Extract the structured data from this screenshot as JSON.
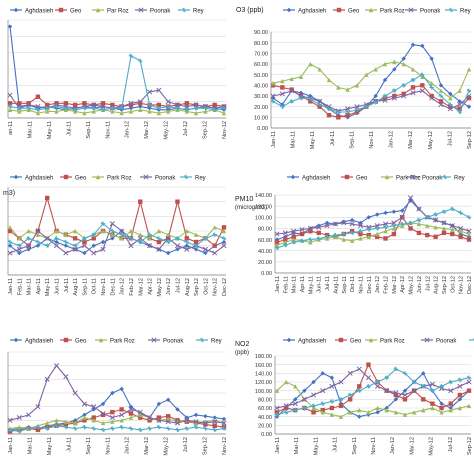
{
  "colors": {
    "s1": "#4472C4",
    "s2": "#C0504D",
    "s3": "#9BBB59",
    "s4": "#8064A2",
    "s5": "#4BACC6",
    "grid": "#d9d9d9",
    "axis": "#808080"
  },
  "chart_data": [
    {
      "type": "line",
      "title": "",
      "ylabel": "",
      "ylim": [
        0,
        6
      ],
      "grid": true,
      "legend": "top",
      "y_ticks": [],
      "x_ticks": [
        "an-11",
        "Mar-11",
        "May-11",
        "Jul-11",
        "Sep-11",
        "Nov-11",
        "Jan-12",
        "Mar-12",
        "May-12",
        "Jul-12",
        "Sep-12",
        "Nov-12"
      ],
      "series": [
        {
          "name": "Aghdasieh",
          "values": [
            5.6,
            0.7,
            0.8,
            0.6,
            0.7,
            0.6,
            0.5,
            0.6,
            0.7,
            0.6,
            0.7,
            0.6,
            0.5,
            0.6,
            0.7,
            0.6,
            0.5,
            0.5,
            0.6,
            0.5,
            0.6,
            0.7,
            0.6,
            0.5
          ]
        },
        {
          "name": "Geo",
          "values": [
            0.9,
            0.9,
            0.9,
            1.3,
            0.8,
            0.9,
            0.9,
            0.8,
            0.9,
            0.8,
            0.9,
            0.8,
            0.7,
            0.8,
            0.9,
            0.8,
            0.8,
            0.7,
            0.8,
            0.9,
            0.8,
            0.7,
            0.8,
            0.7
          ]
        },
        {
          "name": "Par Roz",
          "values": [
            0.5,
            0.4,
            0.5,
            0.3,
            0.4,
            0.4,
            0.5,
            0.4,
            0.3,
            0.4,
            0.5,
            0.4,
            0.3,
            0.4,
            0.5,
            0.4,
            0.3,
            0.4,
            0.5,
            0.4,
            0.3,
            0.4,
            0.5,
            0.3
          ]
        },
        {
          "name": "Poonak",
          "values": [
            1.4,
            0.6,
            0.8,
            0.7,
            0.6,
            0.8,
            0.7,
            0.6,
            0.7,
            0.8,
            0.7,
            0.6,
            0.7,
            0.9,
            1.0,
            1.6,
            1.7,
            1.0,
            0.8,
            0.7,
            0.8,
            0.7,
            0.6,
            0.7
          ]
        },
        {
          "name": "Rey",
          "values": [
            0.7,
            0.6,
            0.6,
            0.5,
            0.6,
            0.7,
            0.6,
            0.5,
            0.6,
            0.6,
            0.5,
            0.6,
            0.6,
            3.8,
            3.5,
            0.8,
            0.6,
            0.7,
            0.6,
            0.5,
            0.6,
            0.6,
            0.5,
            0.6
          ]
        }
      ]
    },
    {
      "type": "line",
      "title": "O3 (ppb)",
      "ylabel": "",
      "ylim": [
        0,
        90
      ],
      "grid": true,
      "legend": "top",
      "y_ticks": [
        "0.00",
        "10.00",
        "20.00",
        "30.00",
        "40.00",
        "50.00",
        "60.00",
        "70.00",
        "80.00",
        "90.00"
      ],
      "x_ticks": [
        "Jan-11",
        "Mar-11",
        "May-11",
        "Jul-11",
        "Sep-11",
        "Nov-11",
        "Jan-12",
        "Mar-12",
        "May-12",
        "Jul-12",
        "Sep-12"
      ],
      "series": [
        {
          "name": "Aghdasieh",
          "values": [
            28,
            22,
            35,
            33,
            30,
            25,
            18,
            12,
            10,
            14,
            20,
            30,
            45,
            55,
            65,
            78,
            77,
            65,
            40,
            32,
            25,
            20
          ]
        },
        {
          "name": "Geo",
          "values": [
            40,
            38,
            36,
            30,
            25,
            20,
            12,
            10,
            12,
            15,
            20,
            25,
            28,
            30,
            32,
            38,
            40,
            30,
            25,
            20,
            18,
            28
          ]
        },
        {
          "name": "Park Roz",
          "values": [
            42,
            44,
            46,
            48,
            60,
            55,
            45,
            38,
            36,
            40,
            50,
            55,
            60,
            62,
            60,
            55,
            48,
            42,
            35,
            28,
            35,
            55
          ]
        },
        {
          "name": "Poonak",
          "values": [
            30,
            32,
            35,
            30,
            28,
            25,
            20,
            16,
            18,
            20,
            22,
            25,
            26,
            28,
            30,
            33,
            35,
            28,
            22,
            18,
            22,
            30
          ]
        },
        {
          "name": "Rey",
          "values": [
            25,
            20,
            25,
            28,
            27,
            22,
            18,
            15,
            15,
            17,
            20,
            24,
            30,
            35,
            40,
            45,
            50,
            38,
            30,
            22,
            15,
            35
          ]
        }
      ]
    },
    {
      "type": "line",
      "title": "m3)",
      "ylabel": "",
      "ylim": [
        0,
        12
      ],
      "grid": true,
      "legend": "top",
      "y_ticks": [],
      "x_ticks": [
        "Jan-11",
        "Feb-11",
        "Mar-11",
        "Apr-11",
        "May-11",
        "Jun-11",
        "Jul-11",
        "Aug-11",
        "Sep-11",
        "Oct-11",
        "Nov-11",
        "Dec-11",
        "Jan-12",
        "Feb-12",
        "Mar-12",
        "Apr-12",
        "May-12",
        "Jun-12",
        "Jul-12",
        "Aug-12",
        "Sep-12",
        "Oct-12",
        "Nov-12",
        "Dec-12"
      ],
      "series": [
        {
          "name": "Aghdasieh",
          "values": [
            4,
            3,
            3.5,
            4,
            5,
            4.5,
            4,
            3.5,
            3,
            4,
            4.5,
            5,
            6,
            5,
            4.5,
            4,
            3.5,
            3,
            3.5,
            4,
            3.5,
            3,
            4,
            4.5
          ]
        },
        {
          "name": "Geo",
          "values": [
            6,
            5,
            4,
            6,
            10.5,
            6,
            5.5,
            5,
            4.5,
            5,
            6,
            5.5,
            5,
            5,
            10,
            5,
            4.5,
            5,
            10,
            5,
            4.5,
            5,
            4,
            6.5
          ]
        },
        {
          "name": "Park Roz",
          "values": [
            6.5,
            5,
            6,
            5.5,
            5,
            6,
            5.5,
            6,
            5,
            5.5,
            6,
            5.5,
            5,
            6,
            5.5,
            5,
            6,
            5.5,
            5,
            6,
            5.5,
            5,
            6.5,
            6
          ]
        },
        {
          "name": "Poonak",
          "values": [
            3,
            3.5,
            4,
            6,
            5,
            4,
            3,
            3.5,
            4,
            3,
            3.5,
            7,
            6,
            4,
            5,
            4,
            3.5,
            5,
            4,
            3.5,
            4,
            3.5,
            3,
            4
          ]
        },
        {
          "name": "Rey",
          "values": [
            4.5,
            4,
            5,
            4.5,
            4,
            5,
            4.5,
            4,
            5,
            5.5,
            7,
            6,
            5.5,
            5,
            4.5,
            5.5,
            5,
            4.5,
            5,
            4.5,
            4,
            5,
            5.5,
            5
          ]
        }
      ]
    },
    {
      "type": "line",
      "title": "PM10",
      "ylabel": "(microg/m3)",
      "ylim": [
        0,
        140
      ],
      "grid": true,
      "legend": "top",
      "y_ticks": [
        "0.00",
        "20.00",
        "40.00",
        "60.00",
        "80.00",
        "100.00",
        "120.00",
        "140.00"
      ],
      "x_ticks": [
        "Jan-11",
        "Feb-11",
        "Mar-11",
        "Apr-11",
        "May-11",
        "Jun-11",
        "Jul-11",
        "Aug-11",
        "Sep-11",
        "Oct-11",
        "Nov-11",
        "Dec-11",
        "Jan-12",
        "Feb-12",
        "Mar-12",
        "Apr-12",
        "May-12",
        "Jun-12",
        "Jul-12",
        "Aug-12",
        "Sep-12",
        "Oct-12",
        "Nov-12",
        "Dec-12"
      ],
      "series": [
        {
          "name": "Aghdasieh",
          "values": [
            60,
            65,
            72,
            70,
            80,
            85,
            90,
            88,
            92,
            95,
            90,
            100,
            105,
            108,
            110,
            112,
            130,
            115,
            100,
            95,
            90,
            85,
            70,
            65
          ]
        },
        {
          "name": "Geo",
          "values": [
            55,
            60,
            65,
            70,
            75,
            72,
            68,
            65,
            70,
            75,
            70,
            68,
            65,
            62,
            70,
            100,
            80,
            72,
            68,
            65,
            72,
            70,
            65,
            60
          ]
        },
        {
          "name": "Park Roz",
          "values": [
            50,
            55,
            60,
            58,
            55,
            60,
            62,
            65,
            60,
            58,
            62,
            65,
            70,
            75,
            80,
            85,
            90,
            88,
            85,
            82,
            80,
            78,
            75,
            70
          ]
        },
        {
          "name": "Poonak",
          "values": [
            70,
            72,
            75,
            78,
            80,
            82,
            85,
            88,
            90,
            88,
            85,
            82,
            85,
            88,
            90,
            100,
            135,
            115,
            100,
            95,
            90,
            85,
            80,
            75
          ]
        },
        {
          "name": "Rey",
          "values": [
            45,
            50,
            55,
            58,
            60,
            62,
            65,
            68,
            70,
            72,
            75,
            78,
            80,
            82,
            85,
            88,
            90,
            95,
            100,
            105,
            110,
            115,
            108,
            100
          ]
        }
      ]
    },
    {
      "type": "line",
      "title": "",
      "ylabel": "",
      "ylim": [
        0,
        60
      ],
      "grid": true,
      "legend": "top",
      "y_ticks": [],
      "x_ticks": [
        "Jan-11",
        "Mar-11",
        "May-11",
        "Jul-11",
        "Sep-11",
        "Nov-11",
        "Jan-12",
        "Mar-12",
        "May-12",
        "Jul-12",
        "Sep-12",
        "Nov-12"
      ],
      "series": [
        {
          "name": "Aghdasieh",
          "values": [
            3,
            4,
            5,
            4,
            6,
            7,
            8,
            10,
            14,
            18,
            22,
            30,
            33,
            20,
            15,
            12,
            22,
            25,
            18,
            12,
            14,
            13,
            12,
            11
          ]
        },
        {
          "name": "Geo",
          "values": [
            2,
            3,
            4,
            3,
            5,
            6,
            7,
            8,
            10,
            12,
            14,
            16,
            18,
            15,
            12,
            10,
            12,
            13,
            10,
            9,
            8,
            7,
            6,
            5
          ]
        },
        {
          "name": "Park Roz",
          "values": [
            4,
            5,
            4,
            6,
            8,
            10,
            9,
            8,
            12,
            10,
            8,
            9,
            10,
            12,
            14,
            12,
            10,
            11,
            9,
            10,
            8,
            9,
            10,
            8
          ]
        },
        {
          "name": "Poonak",
          "values": [
            10,
            12,
            14,
            20,
            40,
            50,
            42,
            30,
            22,
            20,
            15,
            12,
            14,
            18,
            16,
            12,
            10,
            9,
            8,
            10,
            9,
            8,
            9,
            8
          ]
        },
        {
          "name": "Rey",
          "values": [
            3,
            2,
            4,
            5,
            4,
            6,
            5,
            4,
            5,
            4,
            3,
            4,
            5,
            4,
            3,
            4,
            5,
            4,
            3,
            4,
            5,
            4,
            3,
            4
          ]
        }
      ]
    },
    {
      "type": "line",
      "title": "NO2",
      "ylabel": "(ppb)",
      "ylim": [
        0,
        180
      ],
      "grid": true,
      "legend": "top",
      "y_ticks": [
        "0.00",
        "20.00",
        "40.00",
        "60.00",
        "80.00",
        "100.00",
        "120.00",
        "140.00",
        "160.00",
        "180.00"
      ],
      "x_ticks": [
        "Jan-11",
        "Mar-11",
        "May-11",
        "Jul-11",
        "Sep-11",
        "Nov-11",
        "Jan-12",
        "Mar-12",
        "May-12",
        "Jul-12",
        "Sep-12"
      ],
      "series": [
        {
          "name": "Aghdasieh",
          "values": [
            40,
            60,
            80,
            100,
            120,
            140,
            130,
            70,
            50,
            40,
            45,
            50,
            60,
            80,
            100,
            120,
            140,
            100,
            70,
            60,
            80,
            100
          ]
        },
        {
          "name": "Geo",
          "values": [
            50,
            60,
            55,
            60,
            50,
            55,
            60,
            65,
            80,
            110,
            160,
            120,
            100,
            90,
            80,
            100,
            80,
            70,
            60,
            70,
            90,
            100
          ]
        },
        {
          "name": "Park Roz",
          "values": [
            100,
            120,
            110,
            80,
            60,
            50,
            45,
            40,
            50,
            55,
            50,
            60,
            55,
            50,
            45,
            50,
            55,
            60,
            50,
            55,
            60,
            65
          ]
        },
        {
          "name": "Poonak",
          "values": [
            60,
            65,
            70,
            80,
            90,
            100,
            110,
            120,
            140,
            150,
            130,
            110,
            100,
            95,
            90,
            100,
            110,
            115,
            105,
            100,
            110,
            120
          ]
        },
        {
          "name": "Rey",
          "values": [
            45,
            50,
            55,
            60,
            65,
            70,
            75,
            80,
            90,
            100,
            110,
            120,
            130,
            150,
            140,
            120,
            110,
            100,
            110,
            120,
            125,
            130
          ]
        }
      ]
    }
  ]
}
